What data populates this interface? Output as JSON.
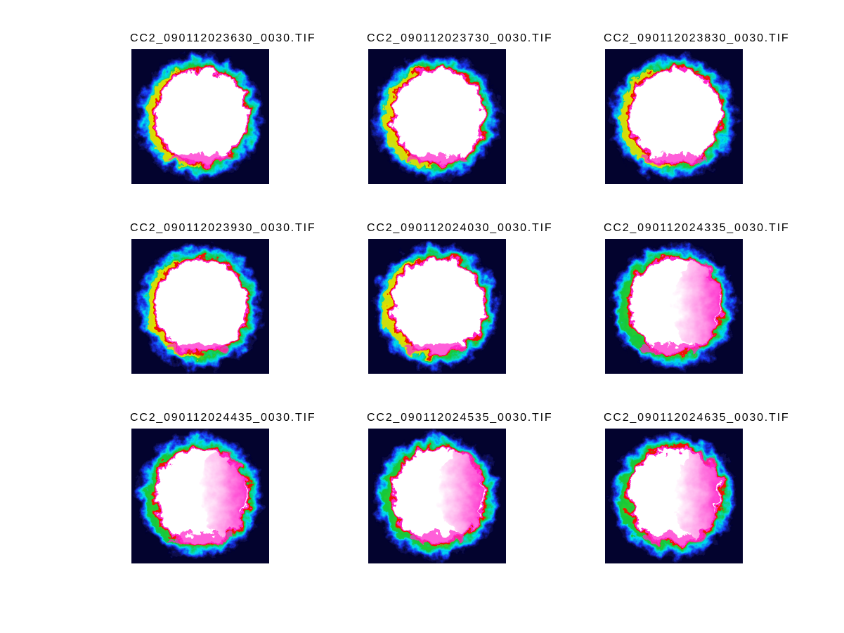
{
  "chart_data": {
    "type": "heatmap",
    "layout": {
      "rows": 3,
      "cols": 3
    },
    "panels": [
      "CC2_090112023630_0030.TIF",
      "CC2_090112023730_0030.TIF",
      "CC2_090112023830_0030.TIF",
      "CC2_090112023930_0030.TIF",
      "CC2_090112024030_0030.TIF",
      "CC2_090112024335_0030.TIF",
      "CC2_090112024435_0030.TIF",
      "CC2_090112024535_0030.TIF",
      "CC2_090112024635_0030.TIF"
    ],
    "colormap_order_outer_to_inner": [
      "navy",
      "blue",
      "cyan",
      "green",
      "yellow",
      "orange",
      "red",
      "magenta",
      "white"
    ],
    "description": "3x3 montage of false-color TIF image frames; each panel shows a roughly circular saturated white region with a fractal rainbow jet-colormap fringe on a dark navy square background. Later frames (024335 onward) show a magenta wash inside the right portion and greener left fringes."
  },
  "figure": {
    "background": "#ffffff",
    "title_color": "#000000",
    "palette": {
      "tile_bg": "#03032e",
      "halo": "#0b0b52",
      "blue": "#1834ee",
      "cyan": "#00dcf2",
      "green": "#16c838",
      "yellow_green": "#a8e000",
      "yellow": "#f0e000",
      "orange": "#ff9800",
      "red": "#ee1400",
      "magenta": "#ff28cc",
      "white": "#ffffff"
    },
    "tiles": [
      {
        "title": "CC2_090112023630_0030.TIF",
        "variant": "early",
        "seed": 7
      },
      {
        "title": "CC2_090112023730_0030.TIF",
        "variant": "early",
        "seed": 13
      },
      {
        "title": "CC2_090112023830_0030.TIF",
        "variant": "early",
        "seed": 21
      },
      {
        "title": "CC2_090112023930_0030.TIF",
        "variant": "early",
        "seed": 31
      },
      {
        "title": "CC2_090112024030_0030.TIF",
        "variant": "early",
        "seed": 44
      },
      {
        "title": "CC2_090112024335_0030.TIF",
        "variant": "late",
        "seed": 52
      },
      {
        "title": "CC2_090112024435_0030.TIF",
        "variant": "late",
        "seed": 63
      },
      {
        "title": "CC2_090112024535_0030.TIF",
        "variant": "late",
        "seed": 71
      },
      {
        "title": "CC2_090112024635_0030.TIF",
        "variant": "late",
        "seed": 85
      }
    ]
  }
}
